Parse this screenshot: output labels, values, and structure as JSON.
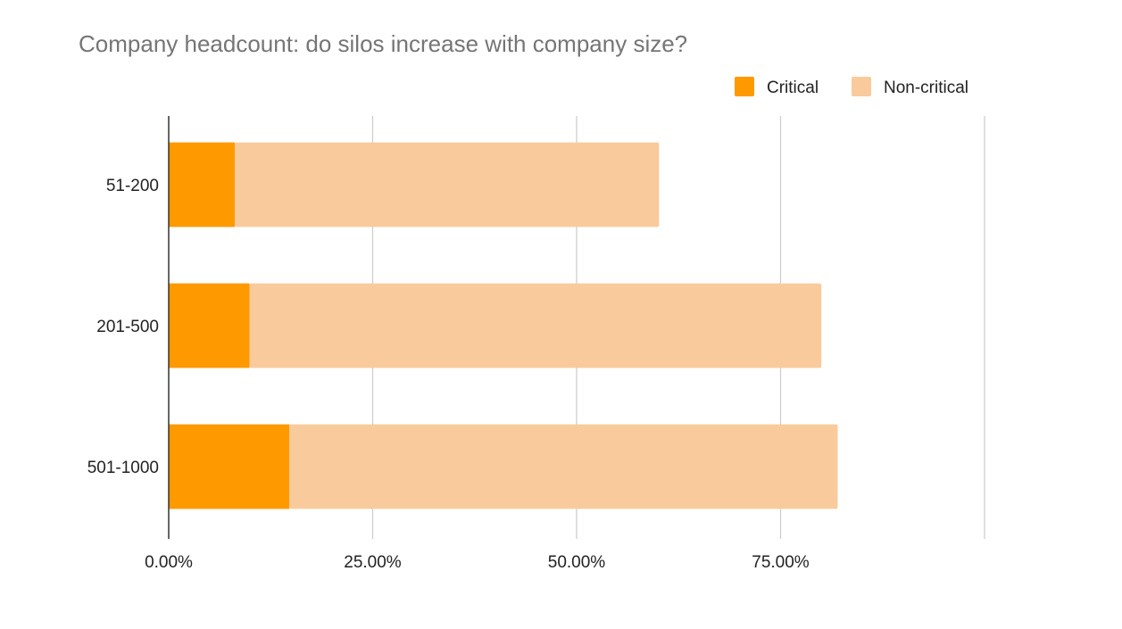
{
  "chart_data": {
    "type": "bar",
    "orientation": "horizontal",
    "stacked": true,
    "title": "Company headcount: do silos increase with company size?",
    "xlabel": "",
    "ylabel": "",
    "categories": [
      "51-200",
      "201-500",
      "501-1000"
    ],
    "series": [
      {
        "name": "Critical",
        "values": [
          8.1,
          9.9,
          14.8
        ],
        "color": "#ff9900"
      },
      {
        "name": "Non-critical",
        "values": [
          52.0,
          70.1,
          67.2
        ],
        "color": "#f9cb9c"
      }
    ],
    "xlim": [
      0,
      100
    ],
    "x_ticks": [
      0,
      25,
      50,
      75,
      100
    ],
    "x_tick_labels": [
      "0.00%",
      "25.00%",
      "50.00%",
      "75.00%",
      ""
    ],
    "grid": true,
    "legend_position": "top-right",
    "colors": {
      "title": "#757575",
      "text": "#222222",
      "grid": "#cccccc",
      "axis": "#333333"
    }
  }
}
